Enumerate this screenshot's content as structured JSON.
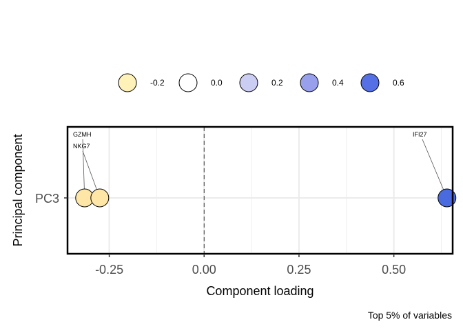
{
  "chart_data": {
    "type": "scatter",
    "title": "",
    "xlabel": "Component loading",
    "ylabel": "Principal component",
    "caption": "Top 5% of variables",
    "xlim": [
      -0.36,
      0.655
    ],
    "x_ticks": [
      -0.25,
      0.0,
      0.25,
      0.5
    ],
    "x_tick_labels": [
      "-0.25",
      "0.00",
      "0.25",
      "0.50"
    ],
    "y_categories": [
      "PC3"
    ],
    "grid": true,
    "reference_line_x": 0,
    "legend": {
      "placement": "top",
      "entries": [
        {
          "label": "-0.2",
          "color": "#fff2b8"
        },
        {
          "label": "0.0",
          "color": "#ffffff"
        },
        {
          "label": "0.2",
          "color": "#cccdf2"
        },
        {
          "label": "0.4",
          "color": "#98a0ec"
        },
        {
          "label": "0.6",
          "color": "#5470e4"
        }
      ]
    },
    "points": [
      {
        "label": "GZMH",
        "x": -0.315,
        "y": "PC3",
        "color": "#fde6a6"
      },
      {
        "label": "NKG7",
        "x": -0.275,
        "y": "PC3",
        "color": "#fde6a6"
      },
      {
        "label": "IFI27",
        "x": 0.64,
        "y": "PC3",
        "color": "#4a6be0"
      }
    ]
  }
}
